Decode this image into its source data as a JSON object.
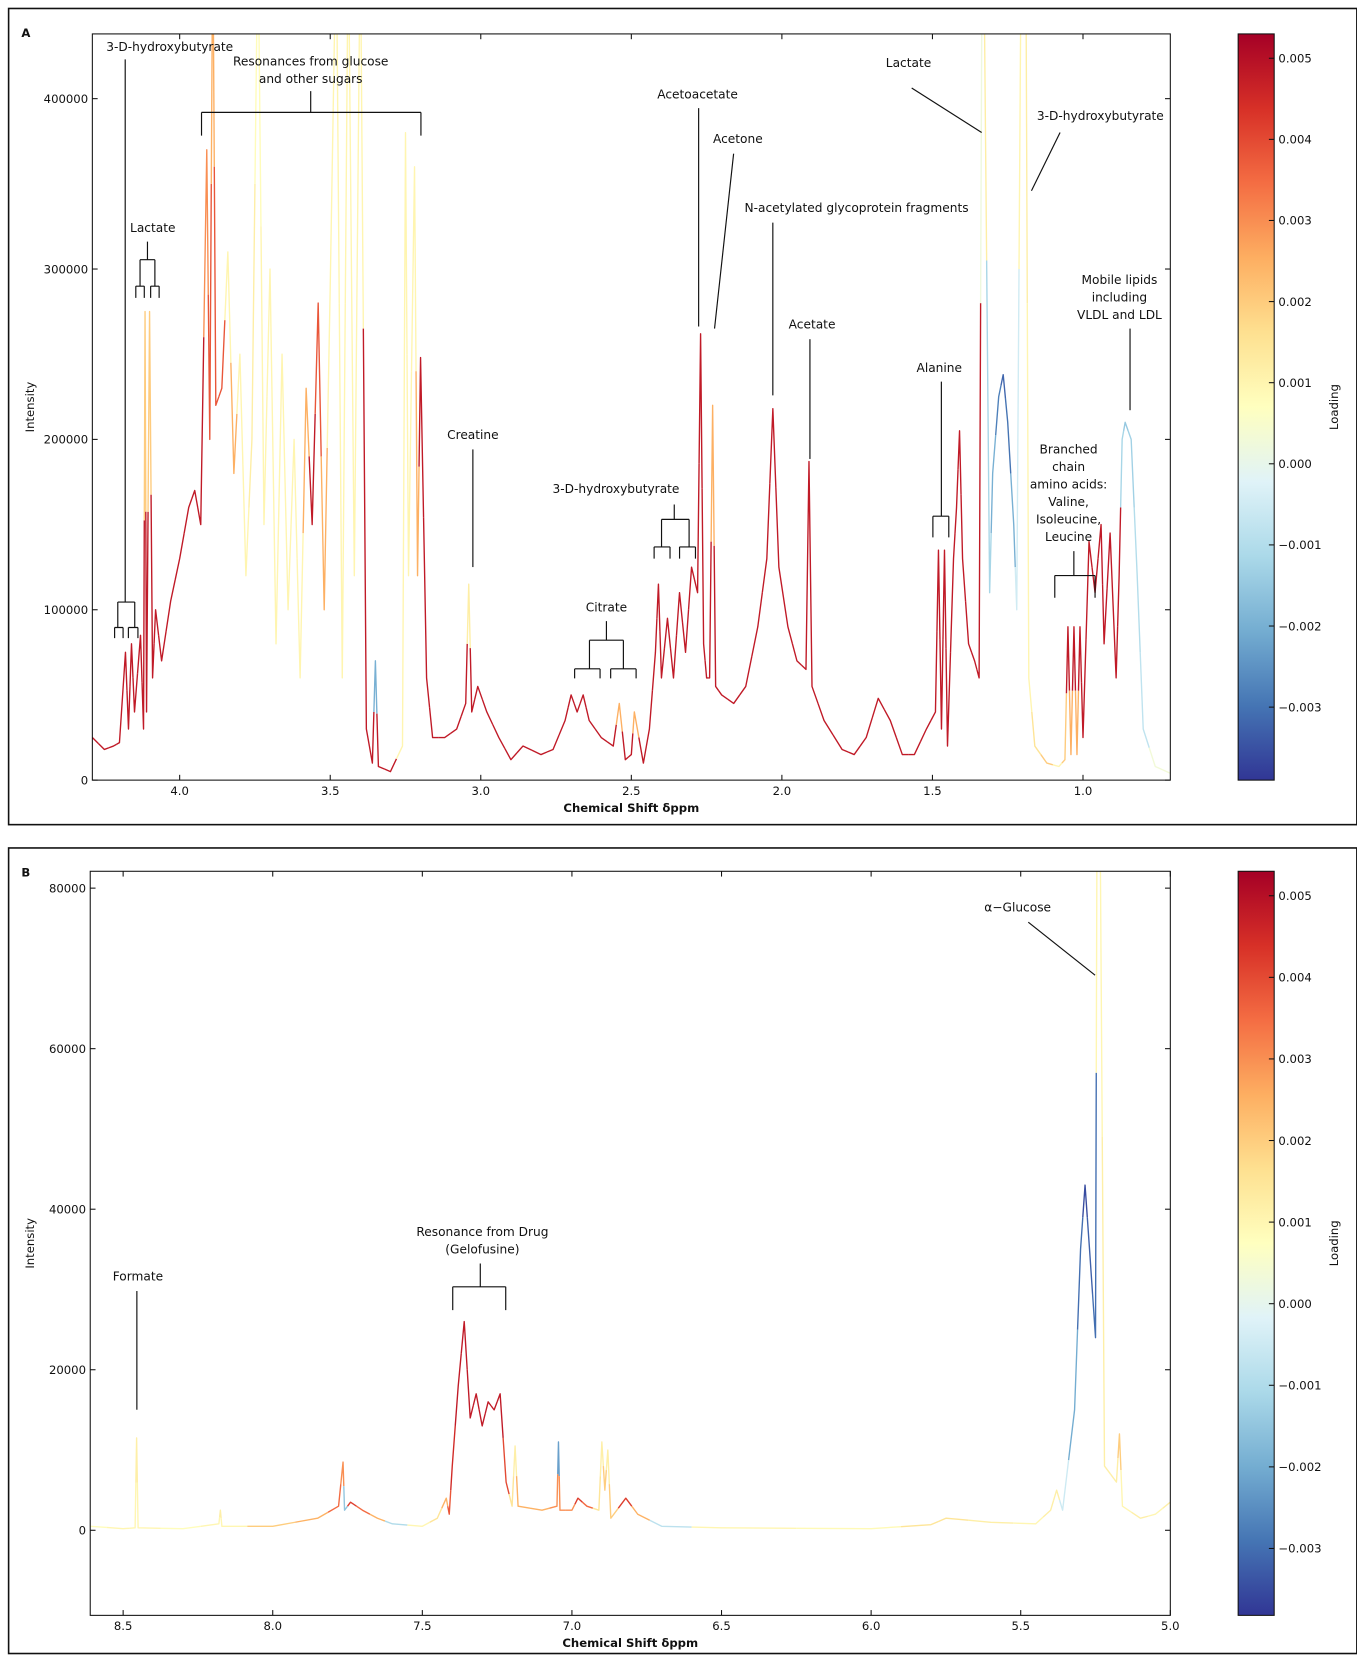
{
  "chart_data": [
    {
      "type": "line",
      "panel_label": "A",
      "ylabel": "Intensity",
      "xlabel": "Chemical Shift δppm",
      "xlim": [
        4.29,
        0.71
      ],
      "ylim": [
        0,
        438000
      ],
      "xticks": [
        {
          "value": 4,
          "label": "4.0"
        },
        3.5,
        {
          "value": 3,
          "label": "3.0"
        },
        2.5,
        {
          "value": 2,
          "label": "2.0"
        },
        1.5,
        {
          "value": 1,
          "label": "1.0"
        }
      ],
      "yticks": [
        0,
        100000,
        200000,
        300000,
        400000
      ],
      "x": [
        4.29,
        4.25,
        4.22,
        4.2,
        4.18,
        4.17,
        4.16,
        4.15,
        4.13,
        4.12,
        4.115,
        4.11,
        4.1,
        4.09,
        4.08,
        4.06,
        4.03,
        4.0,
        3.97,
        3.95,
        3.93,
        3.91,
        3.9,
        3.89,
        3.88,
        3.86,
        3.84,
        3.82,
        3.8,
        3.78,
        3.76,
        3.74,
        3.72,
        3.7,
        3.68,
        3.66,
        3.64,
        3.62,
        3.6,
        3.58,
        3.56,
        3.54,
        3.52,
        3.5,
        3.48,
        3.46,
        3.44,
        3.42,
        3.4,
        3.38,
        3.36,
        3.35,
        3.34,
        3.3,
        3.26,
        3.25,
        3.24,
        3.22,
        3.21,
        3.2,
        3.18,
        3.16,
        3.12,
        3.08,
        3.05,
        3.04,
        3.03,
        3.01,
        2.98,
        2.94,
        2.9,
        2.86,
        2.8,
        2.76,
        2.72,
        2.7,
        2.68,
        2.66,
        2.64,
        2.6,
        2.56,
        2.54,
        2.52,
        2.5,
        2.49,
        2.46,
        2.44,
        2.42,
        2.41,
        2.4,
        2.38,
        2.36,
        2.34,
        2.32,
        2.3,
        2.28,
        2.27,
        2.26,
        2.25,
        2.24,
        2.23,
        2.22,
        2.2,
        2.16,
        2.12,
        2.08,
        2.05,
        2.03,
        2.01,
        1.98,
        1.95,
        1.92,
        1.91,
        1.9,
        1.86,
        1.8,
        1.76,
        1.72,
        1.68,
        1.64,
        1.6,
        1.56,
        1.52,
        1.49,
        1.48,
        1.47,
        1.46,
        1.45,
        1.43,
        1.42,
        1.41,
        1.4,
        1.38,
        1.36,
        1.345,
        1.335,
        1.33,
        1.31,
        1.3,
        1.28,
        1.265,
        1.25,
        1.23,
        1.22,
        1.205,
        1.19,
        1.18,
        1.16,
        1.12,
        1.08,
        1.06,
        1.05,
        1.04,
        1.03,
        1.02,
        1.01,
        1.0,
        0.98,
        0.96,
        0.94,
        0.93,
        0.91,
        0.89,
        0.88,
        0.87,
        0.86,
        0.84,
        0.82,
        0.8,
        0.76,
        0.71
      ],
      "values": [
        25000,
        18000,
        20000,
        22000,
        75000,
        30000,
        80000,
        40000,
        85000,
        30000,
        275000,
        40000,
        275000,
        60000,
        100000,
        70000,
        105000,
        130000,
        160000,
        170000,
        150000,
        370000,
        200000,
        500000,
        220000,
        230000,
        310000,
        180000,
        250000,
        120000,
        200000,
        500000,
        150000,
        300000,
        80000,
        250000,
        100000,
        200000,
        60000,
        230000,
        150000,
        280000,
        100000,
        290000,
        500000,
        60000,
        500000,
        120000,
        500000,
        30000,
        10000,
        70000,
        8000,
        5000,
        20000,
        380000,
        120000,
        360000,
        120000,
        248000,
        60000,
        25000,
        25000,
        30000,
        45000,
        115000,
        40000,
        55000,
        40000,
        25000,
        12000,
        20000,
        15000,
        18000,
        35000,
        50000,
        40000,
        50000,
        35000,
        25000,
        20000,
        45000,
        12000,
        15000,
        40000,
        10000,
        30000,
        75000,
        115000,
        60000,
        95000,
        60000,
        110000,
        75000,
        125000,
        110000,
        262000,
        80000,
        60000,
        60000,
        220000,
        55000,
        50000,
        45000,
        55000,
        90000,
        130000,
        218000,
        125000,
        90000,
        70000,
        65000,
        187000,
        55000,
        35000,
        18000,
        15000,
        25000,
        48000,
        35000,
        15000,
        15000,
        30000,
        40000,
        135000,
        30000,
        135000,
        20000,
        130000,
        160000,
        205000,
        130000,
        80000,
        70000,
        60000,
        500000,
        500000,
        110000,
        180000,
        225000,
        238000,
        210000,
        150000,
        100000,
        500000,
        500000,
        60000,
        20000,
        10000,
        8000,
        12000,
        90000,
        15000,
        90000,
        15000,
        90000,
        25000,
        140000,
        110000,
        150000,
        80000,
        145000,
        60000,
        120000,
        200000,
        210000,
        200000,
        120000,
        30000,
        8000,
        4000
      ],
      "loadings": [
        0.0048,
        0.0048,
        0.0048,
        0.0048,
        0.0048,
        0.0048,
        0.0048,
        0.0048,
        0.0048,
        0.0048,
        0.002,
        0.0048,
        0.002,
        0.0048,
        0.0048,
        0.0048,
        0.0048,
        0.0048,
        0.0048,
        0.0048,
        0.0048,
        0.003,
        0.0038,
        0.0025,
        0.0038,
        0.0038,
        0.001,
        0.0025,
        0.001,
        0.001,
        0.0012,
        0.0008,
        0.001,
        0.001,
        0.001,
        0.001,
        0.001,
        0.001,
        0.001,
        0.0025,
        0.0048,
        0.0038,
        0.0025,
        0.001,
        0.001,
        0.001,
        0.001,
        0.001,
        0.001,
        0.0048,
        0.0048,
        -0.002,
        0.0048,
        0.0048,
        0.001,
        0.001,
        0.001,
        0.001,
        0.0025,
        0.0048,
        0.0048,
        0.0048,
        0.0048,
        0.0048,
        0.0048,
        0.0012,
        0.0048,
        0.0048,
        0.0048,
        0.0048,
        0.0048,
        0.0048,
        0.0048,
        0.0048,
        0.0048,
        0.0048,
        0.0048,
        0.0048,
        0.0048,
        0.0048,
        0.0048,
        0.0025,
        0.0048,
        0.0048,
        0.0025,
        0.0048,
        0.0048,
        0.0048,
        0.0048,
        0.0048,
        0.0048,
        0.0048,
        0.0048,
        0.0048,
        0.0048,
        0.0048,
        0.0048,
        0.0048,
        0.0048,
        0.0048,
        0.0025,
        0.0048,
        0.0048,
        0.0048,
        0.0048,
        0.0048,
        0.0048,
        0.0048,
        0.0048,
        0.0048,
        0.0048,
        0.0048,
        0.0048,
        0.0048,
        0.0048,
        0.0048,
        0.0048,
        0.0048,
        0.0048,
        0.0048,
        0.0048,
        0.0048,
        0.0048,
        0.0048,
        0.0048,
        0.0048,
        0.0048,
        0.0048,
        0.0048,
        0.0048,
        0.0048,
        0.0048,
        0.0048,
        0.0048,
        0.0048,
        0.0002,
        0.0012,
        -0.0012,
        -0.002,
        -0.0028,
        -0.0032,
        -0.003,
        -0.002,
        -0.0005,
        0.001,
        0.0012,
        0.001,
        0.0015,
        0.002,
        0.001,
        0.002,
        0.0048,
        0.0025,
        0.0048,
        0.0025,
        0.0048,
        0.0048,
        0.0048,
        0.0048,
        0.0048,
        0.0048,
        0.0048,
        0.0048,
        0.0048,
        -0.0012,
        -0.0015,
        -0.0013,
        -0.001,
        -0.0008,
        0.0003,
        0.0003
      ],
      "colormap": [
        "#313695",
        "#4575b4",
        "#74add1",
        "#abd9e9",
        "#e0f3f8",
        "#ffffbf",
        "#fee090",
        "#fdae61",
        "#f46d43",
        "#d73027",
        "#a50026"
      ],
      "colorbar": {
        "label": "Loading",
        "lim": [
          -0.0039,
          0.0053
        ],
        "ticks": [
          0.005,
          0.004,
          0.003,
          0.002,
          0.001,
          {
            "value": 0,
            "label": "0.000"
          },
          {
            "value": -0.001,
            "label": "−0.001"
          },
          {
            "value": -0.002,
            "label": "−0.002"
          },
          {
            "value": -0.003,
            "label": "−0.003"
          }
        ]
      },
      "annotations": [
        {
          "lines": [
            "3-D-hydroxybutyrate"
          ]
        },
        {
          "lines": [
            "Resonances from glucose",
            "and other sugars"
          ]
        },
        {
          "lines": [
            "Lactate"
          ]
        },
        {
          "lines": [
            "Acetoacetate"
          ]
        },
        {
          "lines": [
            "Acetone"
          ]
        },
        {
          "lines": [
            "N-acetylated glycoprotein fragments"
          ]
        },
        {
          "lines": [
            "Acetate"
          ]
        },
        {
          "lines": [
            "Lactate"
          ]
        },
        {
          "lines": [
            "3-D-hydroxybutyrate"
          ]
        },
        {
          "lines": [
            "Creatine"
          ]
        },
        {
          "lines": [
            "3-D-hydroxybutyrate"
          ]
        },
        {
          "lines": [
            "Citrate"
          ]
        },
        {
          "lines": [
            "Alanine"
          ]
        },
        {
          "lines": [
            "Mobile lipids",
            "including",
            "VLDL and LDL"
          ]
        },
        {
          "lines": [
            "Branched",
            "chain",
            "amino acids:",
            "Valine,",
            "Isoleucine,",
            "Leucine"
          ]
        }
      ]
    },
    {
      "type": "line",
      "panel_label": "B",
      "ylabel": "Intensity",
      "xlabel": "Chemical Shift δppm",
      "xlim": [
        8.61,
        5.0
      ],
      "ylim": [
        -10600,
        82100
      ],
      "xticks": [
        8.5,
        {
          "value": 8,
          "label": "8.0"
        },
        7.5,
        {
          "value": 7,
          "label": "7.0"
        },
        6.5,
        {
          "value": 6,
          "label": "6.0"
        },
        5.5,
        {
          "value": 5,
          "label": "5.0"
        }
      ],
      "yticks": [
        0,
        20000,
        40000,
        60000,
        80000
      ],
      "x": [
        8.61,
        8.5,
        8.46,
        8.455,
        8.45,
        8.3,
        8.18,
        8.175,
        8.17,
        8.0,
        7.85,
        7.78,
        7.765,
        7.76,
        7.74,
        7.7,
        7.65,
        7.6,
        7.5,
        7.45,
        7.42,
        7.41,
        7.4,
        7.38,
        7.36,
        7.34,
        7.32,
        7.3,
        7.28,
        7.26,
        7.24,
        7.22,
        7.2,
        7.19,
        7.18,
        7.1,
        7.05,
        7.045,
        7.04,
        7.0,
        6.98,
        6.95,
        6.91,
        6.9,
        6.89,
        6.88,
        6.87,
        6.82,
        6.78,
        6.7,
        6.5,
        6.0,
        5.8,
        5.75,
        5.6,
        5.45,
        5.4,
        5.38,
        5.36,
        5.32,
        5.3,
        5.285,
        5.27,
        5.25,
        5.245,
        5.235,
        5.22,
        5.18,
        5.17,
        5.16,
        5.1,
        5.05,
        5.0
      ],
      "values": [
        500,
        200,
        300,
        11500,
        300,
        200,
        800,
        2500,
        500,
        500,
        1500,
        3000,
        8500,
        2500,
        3500,
        2500,
        1500,
        800,
        500,
        1500,
        4000,
        2000,
        8000,
        18000,
        26000,
        14000,
        17000,
        13000,
        16000,
        15000,
        17000,
        6000,
        3000,
        10500,
        3000,
        2500,
        3000,
        11000,
        2500,
        2500,
        4000,
        3000,
        2500,
        11000,
        5000,
        10000,
        1500,
        4000,
        2000,
        500,
        300,
        200,
        700,
        1500,
        1000,
        800,
        2500,
        5000,
        2500,
        15000,
        35000,
        43000,
        35000,
        24000,
        90000,
        90000,
        8000,
        6000,
        12000,
        3000,
        1500,
        2000,
        3500
      ],
      "loadings": [
        0.0008,
        0.001,
        0.001,
        0.0012,
        0.001,
        0.0008,
        0.001,
        0.0012,
        0.001,
        0.002,
        0.0025,
        0.0035,
        0.003,
        -0.0015,
        0.0042,
        0.0035,
        0.0025,
        -0.001,
        0.001,
        0.0015,
        0.0025,
        0.0038,
        0.0045,
        0.0048,
        0.0048,
        0.0048,
        0.0048,
        0.0048,
        0.0048,
        0.0048,
        0.0048,
        0.004,
        0.0015,
        0.0012,
        0.0025,
        0.0025,
        0.003,
        -0.0022,
        0.003,
        0.003,
        0.0042,
        0.0035,
        0.0015,
        0.0012,
        0.002,
        0.0012,
        0.002,
        0.0042,
        0.0025,
        -0.0008,
        0.001,
        0.0009,
        0.0015,
        0.0015,
        0.0012,
        0.001,
        0.0012,
        0.0012,
        -0.0005,
        -0.002,
        -0.003,
        -0.0035,
        -0.0032,
        -0.003,
        0.001,
        0.001,
        0.0012,
        0.0012,
        0.002,
        0.001,
        0.0012,
        0.001,
        0.0012
      ],
      "colormap": [
        "#313695",
        "#4575b4",
        "#74add1",
        "#abd9e9",
        "#e0f3f8",
        "#ffffbf",
        "#fee090",
        "#fdae61",
        "#f46d43",
        "#d73027",
        "#a50026"
      ],
      "colorbar": {
        "label": "Loading",
        "lim": [
          -0.00382,
          0.0053
        ],
        "ticks": [
          0.005,
          0.004,
          0.003,
          0.002,
          0.001,
          {
            "value": 0,
            "label": "0.000"
          },
          {
            "value": -0.001,
            "label": "−0.001"
          },
          {
            "value": -0.002,
            "label": "−0.002"
          },
          {
            "value": -0.003,
            "label": "−0.003"
          }
        ]
      },
      "annotations": [
        {
          "lines": [
            "α−Glucose"
          ]
        },
        {
          "lines": [
            "Resonance from Drug",
            "(Gelofusine)"
          ]
        },
        {
          "lines": [
            "Formate"
          ]
        }
      ]
    }
  ]
}
